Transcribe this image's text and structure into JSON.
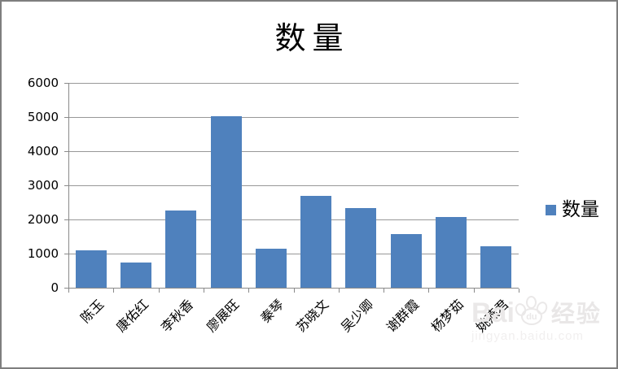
{
  "chart_data": {
    "type": "bar",
    "title": "数量",
    "categories": [
      "陈玉",
      "康佑红",
      "李秋香",
      "廖展旺",
      "秦琴",
      "苏晓文",
      "吴少卿",
      "谢群霞",
      "杨梦茹",
      "姚燕君"
    ],
    "series": [
      {
        "name": "数量",
        "values": [
          1090,
          750,
          2260,
          5030,
          1150,
          2700,
          2330,
          1570,
          2080,
          1210
        ]
      }
    ],
    "xlabel": "",
    "ylabel": "",
    "ylim": [
      0,
      6000
    ],
    "y_ticks": [
      0,
      1000,
      2000,
      3000,
      4000,
      5000,
      6000
    ],
    "grid": true,
    "legend_position": "right",
    "legend": {
      "entries": [
        {
          "label": "数量",
          "color": "#4F81BD"
        }
      ]
    },
    "colors": {
      "bar": "#4F81BD",
      "gridline": "#989898",
      "axis": "#8a8a8a",
      "tick_label": "#000000",
      "frame_border": "#7e7e7e",
      "background": "#ffffff"
    }
  },
  "watermark": {
    "bai": "Bai",
    "du": "du",
    "cn": "经验",
    "domain": "jingyan.baidu.com"
  }
}
